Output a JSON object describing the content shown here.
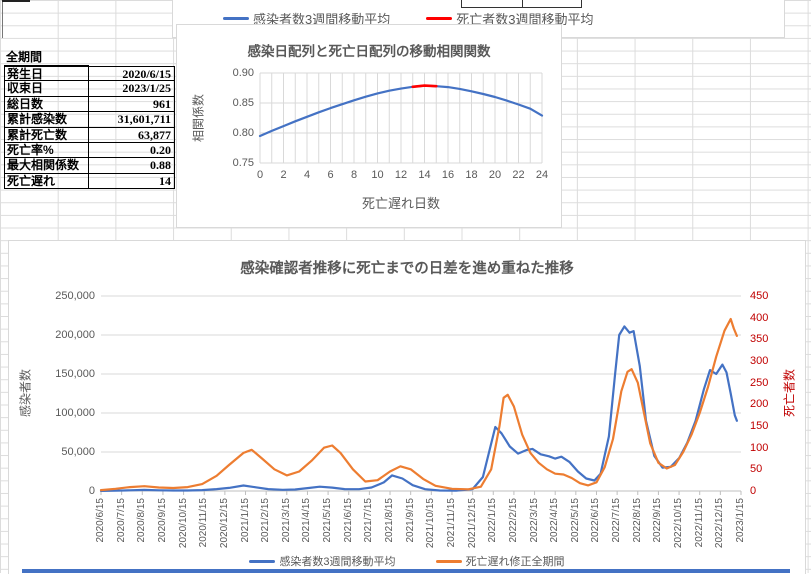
{
  "colors": {
    "blue": "#4472C4",
    "orange": "#ED7D31",
    "red": "#FF0000",
    "dark_red": "#C00000",
    "axis_text": "#595959",
    "gridline": "#D9D9D9",
    "axis_line": "#BFBFBF"
  },
  "cutoff_chart": {
    "legend": [
      {
        "label": "感染者数3週間移動平均",
        "color": "#4472C4"
      },
      {
        "label": "死亡者数3週間移動平均",
        "color": "#FF0000"
      }
    ]
  },
  "summary_table": {
    "header": "全期間",
    "rows": [
      {
        "label": "発生日",
        "value": "2020/6/15"
      },
      {
        "label": "収束日",
        "value": "2023/1/25"
      },
      {
        "label": "総日数",
        "value": "961"
      },
      {
        "label": "累計感染数",
        "value": "31,601,711"
      },
      {
        "label": "累計死亡数",
        "value": "63,877"
      },
      {
        "label": "死亡率%",
        "value": "0.20"
      },
      {
        "label": "最大相関係数",
        "value": "0.88"
      },
      {
        "label": "死亡遅れ",
        "value": "14"
      }
    ]
  },
  "chart_data": [
    {
      "type": "line",
      "title": "感染日配列と死亡日配列の移動相関関数",
      "xlabel": "死亡遅れ日数",
      "ylabel": "相関係数",
      "xlim": [
        0,
        24
      ],
      "ylim": [
        0.75,
        0.9
      ],
      "x_ticks": [
        0,
        2,
        4,
        6,
        8,
        10,
        12,
        14,
        16,
        18,
        20,
        22,
        24
      ],
      "y_tick_labels": [
        "0.90",
        "0.85",
        "0.80",
        "0.75"
      ],
      "grid": "both, x every 1 day",
      "x": [
        0,
        1,
        2,
        3,
        4,
        5,
        6,
        7,
        8,
        9,
        10,
        11,
        12,
        13,
        14,
        15,
        16,
        17,
        18,
        19,
        20,
        21,
        22,
        23,
        24
      ],
      "values": [
        0.795,
        0.8035,
        0.8115,
        0.8195,
        0.827,
        0.8345,
        0.8415,
        0.848,
        0.8545,
        0.8605,
        0.866,
        0.8705,
        0.874,
        0.877,
        0.879,
        0.878,
        0.8765,
        0.8735,
        0.8695,
        0.865,
        0.86,
        0.854,
        0.8475,
        0.8405,
        0.829
      ],
      "line_color": "#4472C4",
      "highlight_segment": {
        "x_from": 13,
        "x_to": 15,
        "color": "#FF0000",
        "meaning": "maximum correlation 0.88 at lag 14"
      }
    },
    {
      "type": "line",
      "title": "感染確認者推移に死亡までの日差を進め重ねた推移",
      "ylabel_left": "感染者数",
      "ylabel_right": "死亡者数",
      "ylim_left": [
        0,
        250000
      ],
      "ylim_right": [
        0,
        450
      ],
      "y_tick_labels_left": [
        "250,000",
        "200,000",
        "150,000",
        "100,000",
        "50,000",
        "0"
      ],
      "y_tick_labels_right": [
        "450",
        "400",
        "350",
        "300",
        "250",
        "200",
        "150",
        "100",
        "50",
        "0"
      ],
      "x_categories": [
        "2020/6/15",
        "2020/7/15",
        "2020/8/15",
        "2020/9/15",
        "2020/10/15",
        "2020/11/15",
        "2020/12/15",
        "2021/1/15",
        "2021/2/15",
        "2021/3/15",
        "2021/4/15",
        "2021/5/15",
        "2021/6/15",
        "2021/7/15",
        "2021/8/15",
        "2021/9/15",
        "2021/10/15",
        "2021/11/15",
        "2021/12/15",
        "2022/1/15",
        "2022/2/15",
        "2022/3/15",
        "2022/4/15",
        "2022/5/15",
        "2022/6/15",
        "2022/7/15",
        "2022/8/15",
        "2022/9/15",
        "2022/10/15",
        "2022/11/15",
        "2022/12/15",
        "2023/1/15"
      ],
      "legend_position": "bottom",
      "series": [
        {
          "name": "感染者数3週間移動平均",
          "axis": "left",
          "color": "#4472C4",
          "points_month_value": [
            [
              0,
              100
            ],
            [
              0.7,
              350
            ],
            [
              1.4,
              900
            ],
            [
              2.1,
              1400
            ],
            [
              2.8,
              900
            ],
            [
              3.5,
              600
            ],
            [
              4.2,
              650
            ],
            [
              4.9,
              1200
            ],
            [
              5.6,
              2400
            ],
            [
              6.2,
              4000
            ],
            [
              6.9,
              7000
            ],
            [
              7.5,
              4800
            ],
            [
              8.1,
              2400
            ],
            [
              8.8,
              1500
            ],
            [
              9.4,
              1900
            ],
            [
              10.0,
              3700
            ],
            [
              10.6,
              5500
            ],
            [
              11.2,
              4300
            ],
            [
              11.8,
              2400
            ],
            [
              12.5,
              2300
            ],
            [
              13.1,
              4500
            ],
            [
              13.7,
              11000
            ],
            [
              14.1,
              20000
            ],
            [
              14.6,
              16000
            ],
            [
              15.1,
              7500
            ],
            [
              15.7,
              2300
            ],
            [
              16.4,
              700
            ],
            [
              17.2,
              350
            ],
            [
              18.0,
              2500
            ],
            [
              18.5,
              18000
            ],
            [
              18.8,
              50000
            ],
            [
              19.1,
              82000
            ],
            [
              19.4,
              74000
            ],
            [
              19.8,
              57000
            ],
            [
              20.2,
              48000
            ],
            [
              20.6,
              52500
            ],
            [
              20.9,
              54000
            ],
            [
              21.3,
              47000
            ],
            [
              21.7,
              44500
            ],
            [
              22.0,
              41500
            ],
            [
              22.3,
              44000
            ],
            [
              22.7,
              37000
            ],
            [
              23.1,
              25000
            ],
            [
              23.5,
              16000
            ],
            [
              23.9,
              13500
            ],
            [
              24.2,
              22000
            ],
            [
              24.6,
              70000
            ],
            [
              24.9,
              150000
            ],
            [
              25.1,
              200000
            ],
            [
              25.35,
              211000
            ],
            [
              25.6,
              203000
            ],
            [
              25.8,
              205000
            ],
            [
              26.1,
              160000
            ],
            [
              26.4,
              90000
            ],
            [
              26.8,
              45000
            ],
            [
              27.2,
              30000
            ],
            [
              27.6,
              31000
            ],
            [
              28.0,
              42000
            ],
            [
              28.4,
              62000
            ],
            [
              28.8,
              90000
            ],
            [
              29.2,
              130000
            ],
            [
              29.5,
              155000
            ],
            [
              29.8,
              150000
            ],
            [
              30.1,
              162000
            ],
            [
              30.3,
              152000
            ],
            [
              30.5,
              125000
            ],
            [
              30.7,
              97000
            ],
            [
              30.8,
              90000
            ]
          ]
        },
        {
          "name": "死亡遅れ修正全期間",
          "axis": "right",
          "color": "#ED7D31",
          "points_month_value": [
            [
              0,
              2
            ],
            [
              0.7,
              5
            ],
            [
              1.4,
              9
            ],
            [
              2.1,
              11
            ],
            [
              2.8,
              8
            ],
            [
              3.5,
              7
            ],
            [
              4.2,
              9
            ],
            [
              4.9,
              16
            ],
            [
              5.6,
              35
            ],
            [
              6.2,
              60
            ],
            [
              6.9,
              88
            ],
            [
              7.3,
              95
            ],
            [
              7.8,
              75
            ],
            [
              8.4,
              50
            ],
            [
              9.0,
              36
            ],
            [
              9.6,
              45
            ],
            [
              10.2,
              70
            ],
            [
              10.8,
              100
            ],
            [
              11.2,
              105
            ],
            [
              11.6,
              88
            ],
            [
              12.2,
              50
            ],
            [
              12.8,
              22
            ],
            [
              13.4,
              25
            ],
            [
              14.0,
              45
            ],
            [
              14.5,
              57
            ],
            [
              15.0,
              50
            ],
            [
              15.6,
              28
            ],
            [
              16.2,
              12
            ],
            [
              17.0,
              5
            ],
            [
              17.8,
              4
            ],
            [
              18.4,
              10
            ],
            [
              18.9,
              50
            ],
            [
              19.3,
              150
            ],
            [
              19.5,
              215
            ],
            [
              19.7,
              222
            ],
            [
              20.0,
              195
            ],
            [
              20.4,
              130
            ],
            [
              20.8,
              88
            ],
            [
              21.2,
              65
            ],
            [
              21.6,
              50
            ],
            [
              22.0,
              40
            ],
            [
              22.4,
              38
            ],
            [
              22.8,
              30
            ],
            [
              23.2,
              18
            ],
            [
              23.6,
              13
            ],
            [
              24.0,
              20
            ],
            [
              24.4,
              55
            ],
            [
              24.8,
              120
            ],
            [
              25.2,
              230
            ],
            [
              25.5,
              275
            ],
            [
              25.7,
              281
            ],
            [
              26.0,
              250
            ],
            [
              26.3,
              180
            ],
            [
              26.6,
              110
            ],
            [
              27.0,
              65
            ],
            [
              27.4,
              52
            ],
            [
              27.8,
              60
            ],
            [
              28.2,
              90
            ],
            [
              28.6,
              130
            ],
            [
              29.0,
              180
            ],
            [
              29.4,
              240
            ],
            [
              29.8,
              310
            ],
            [
              30.2,
              370
            ],
            [
              30.5,
              397
            ],
            [
              30.65,
              375
            ],
            [
              30.8,
              358
            ]
          ]
        }
      ]
    }
  ]
}
